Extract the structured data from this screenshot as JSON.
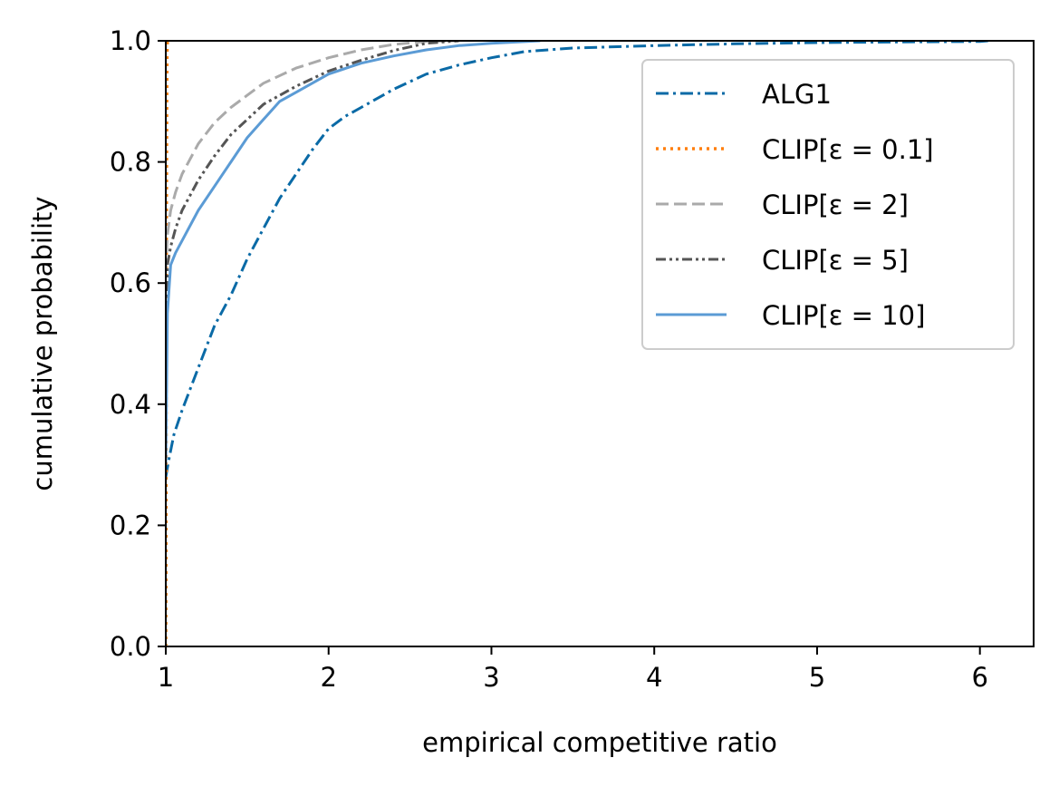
{
  "chart_data": {
    "type": "line",
    "title": "",
    "xlabel": "empirical competitive ratio",
    "ylabel": "cumulative probability",
    "xlim": [
      1,
      6.33
    ],
    "ylim": [
      0,
      1
    ],
    "x_ticks": [
      1,
      2,
      3,
      4,
      5,
      6
    ],
    "x_tick_labels": [
      "1",
      "2",
      "3",
      "4",
      "5",
      "6"
    ],
    "y_ticks": [
      0,
      0.2,
      0.4,
      0.6,
      0.8,
      1.0
    ],
    "y_tick_labels": [
      "0.0",
      "0.2",
      "0.4",
      "0.6",
      "0.8",
      "1.0"
    ],
    "grid": false,
    "legend_position": "top-right",
    "series": [
      {
        "name": "ALG1",
        "color": "#0a6aa6",
        "dash": "dashdot",
        "x": [
          1.0,
          1.02,
          1.05,
          1.1,
          1.2,
          1.3,
          1.4,
          1.5,
          1.6,
          1.7,
          1.8,
          1.9,
          2.0,
          2.1,
          2.2,
          2.4,
          2.6,
          2.8,
          3.0,
          3.2,
          3.5,
          4.0,
          4.5,
          5.0,
          5.5,
          6.0,
          6.05
        ],
        "y": [
          0.28,
          0.31,
          0.35,
          0.39,
          0.46,
          0.53,
          0.58,
          0.64,
          0.69,
          0.74,
          0.78,
          0.82,
          0.855,
          0.875,
          0.89,
          0.92,
          0.945,
          0.96,
          0.972,
          0.982,
          0.988,
          0.992,
          0.995,
          0.997,
          0.998,
          0.999,
          1.0
        ]
      },
      {
        "name": "CLIP[ε = 0.1]",
        "color": "#ff7f0e",
        "dash": "dotted",
        "x": [
          1.0,
          1.001,
          1.002,
          1.003,
          1.004,
          1.006,
          1.008,
          1.01
        ],
        "y": [
          0.0,
          0.1,
          0.3,
          0.5,
          0.7,
          0.9,
          0.98,
          1.0
        ]
      },
      {
        "name": "CLIP[ε = 2]",
        "color": "#aaaaaa",
        "dash": "dashed",
        "x": [
          1.0,
          1.01,
          1.03,
          1.06,
          1.1,
          1.2,
          1.3,
          1.4,
          1.5,
          1.6,
          1.8,
          2.0,
          2.2,
          2.4,
          2.6,
          2.8
        ],
        "y": [
          0.62,
          0.68,
          0.72,
          0.75,
          0.78,
          0.83,
          0.865,
          0.89,
          0.91,
          0.93,
          0.955,
          0.972,
          0.985,
          0.994,
          0.999,
          1.0
        ]
      },
      {
        "name": "CLIP[ε = 5]",
        "color": "#555555",
        "dash": "dashdotdot",
        "x": [
          1.0,
          1.01,
          1.03,
          1.06,
          1.1,
          1.2,
          1.3,
          1.4,
          1.5,
          1.6,
          1.8,
          2.0,
          2.2,
          2.4,
          2.6,
          2.8
        ],
        "y": [
          0.5,
          0.63,
          0.66,
          0.69,
          0.72,
          0.77,
          0.81,
          0.845,
          0.87,
          0.895,
          0.925,
          0.95,
          0.968,
          0.984,
          0.996,
          1.0
        ]
      },
      {
        "name": "CLIP[ε = 10]",
        "color": "#5b9bd5",
        "dash": "solid",
        "x": [
          1.0,
          1.01,
          1.03,
          1.06,
          1.1,
          1.2,
          1.3,
          1.4,
          1.5,
          1.6,
          1.7,
          1.8,
          2.0,
          2.2,
          2.4,
          2.6,
          2.8,
          3.0,
          3.3
        ],
        "y": [
          0.3,
          0.55,
          0.63,
          0.65,
          0.67,
          0.72,
          0.76,
          0.8,
          0.84,
          0.87,
          0.9,
          0.915,
          0.945,
          0.963,
          0.975,
          0.985,
          0.992,
          0.996,
          1.0
        ]
      }
    ]
  }
}
